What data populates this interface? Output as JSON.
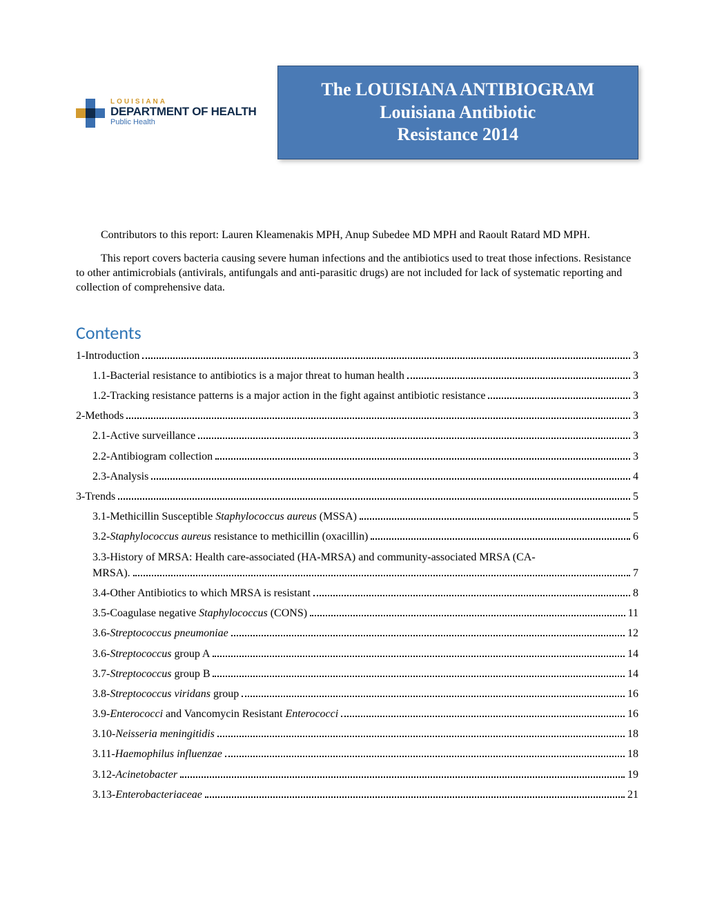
{
  "logo": {
    "state": "LOUISIANA",
    "dept": "DEPARTMENT OF HEALTH",
    "sub": "Public Health",
    "colors": {
      "gold": "#d29a2f",
      "navy": "#0f2a4a",
      "blue": "#3a6fb0"
    }
  },
  "title": {
    "line1": "The LOUISIANA ANTIBIOGRAM",
    "line2": "Louisiana Antibiotic",
    "line3": "Resistance 2014",
    "bg": "#4a7ab5",
    "text_color": "#ffffff"
  },
  "intro": {
    "p1": "Contributors to this report: Lauren Kleamenakis MPH, Anup Subedee MD MPH and Raoult Ratard MD MPH.",
    "p2": "This report covers bacteria causing severe human infections and the antibiotics used to treat those infections. Resistance to other antimicrobials (antivirals, antifungals and anti-parasitic drugs) are not included for lack of systematic reporting and collection of comprehensive data."
  },
  "contents_heading": "Contents",
  "toc": [
    {
      "label": "1-Introduction",
      "page": "3",
      "indent": false
    },
    {
      "label": "1.1-Bacterial resistance to antibiotics is a major threat to human health",
      "page": "3",
      "indent": true
    },
    {
      "label": "1.2-Tracking resistance patterns is a major action in the fight against antibiotic resistance",
      "page": "3",
      "indent": true
    },
    {
      "label": "2-Methods",
      "page": "3",
      "indent": false
    },
    {
      "label": "2.1-Active surveillance",
      "page": "3",
      "indent": true
    },
    {
      "label": "2.2-Antibiogram collection",
      "page": "3",
      "indent": true
    },
    {
      "label": "2.3-Analysis",
      "page": "4",
      "indent": true
    },
    {
      "label": "3-Trends",
      "page": "5",
      "indent": false
    },
    {
      "label_html": "3.1-Methicillin Susceptible <i>Staphylococcus aureus</i> (MSSA)",
      "page": "5",
      "indent": true
    },
    {
      "label_html": "3.2-<i>Staphylococcus aureus</i> resistance to methicillin (oxacillin)",
      "page": "6",
      "indent": true
    },
    {
      "label": "3.3-History of MRSA: Health care-associated (HA-MRSA) and community-associated MRSA (CA-MRSA).",
      "page": "7",
      "indent": true,
      "wrap": true
    },
    {
      "label": "3.4-Other Antibiotics to which MRSA is resistant",
      "page": "8",
      "indent": true
    },
    {
      "label_html": "3.5-Coagulase negative <i>Staphylococcus</i> (CONS)",
      "page": "11",
      "indent": true
    },
    {
      "label_html": "3.6-<i>Streptococcus pneumoniae</i>",
      "page": "12",
      "indent": true
    },
    {
      "label_html": "3.6-<i>Streptococcus</i> group A",
      "page": "14",
      "indent": true
    },
    {
      "label_html": "3.7-<i>Streptococcus</i> group B",
      "page": "14",
      "indent": true
    },
    {
      "label_html": "3.8-<i>Streptococcus viridans</i> group",
      "page": "16",
      "indent": true
    },
    {
      "label_html": "3.9-<i>Enterococci</i> and Vancomycin Resistant <i>Enterococci</i>",
      "page": "16",
      "indent": true
    },
    {
      "label_html": "3.10-<i>Neisseria meningitidis</i>",
      "page": "18",
      "indent": true
    },
    {
      "label_html": "3.11-<i>Haemophilus influenzae</i>",
      "page": "18",
      "indent": true
    },
    {
      "label_html": "3.12-<i>Acinetobacter</i>",
      "page": "19",
      "indent": true
    },
    {
      "label_html": "3.13-<i>Enterobacteriaceae</i>",
      "page": "21",
      "indent": true
    }
  ]
}
